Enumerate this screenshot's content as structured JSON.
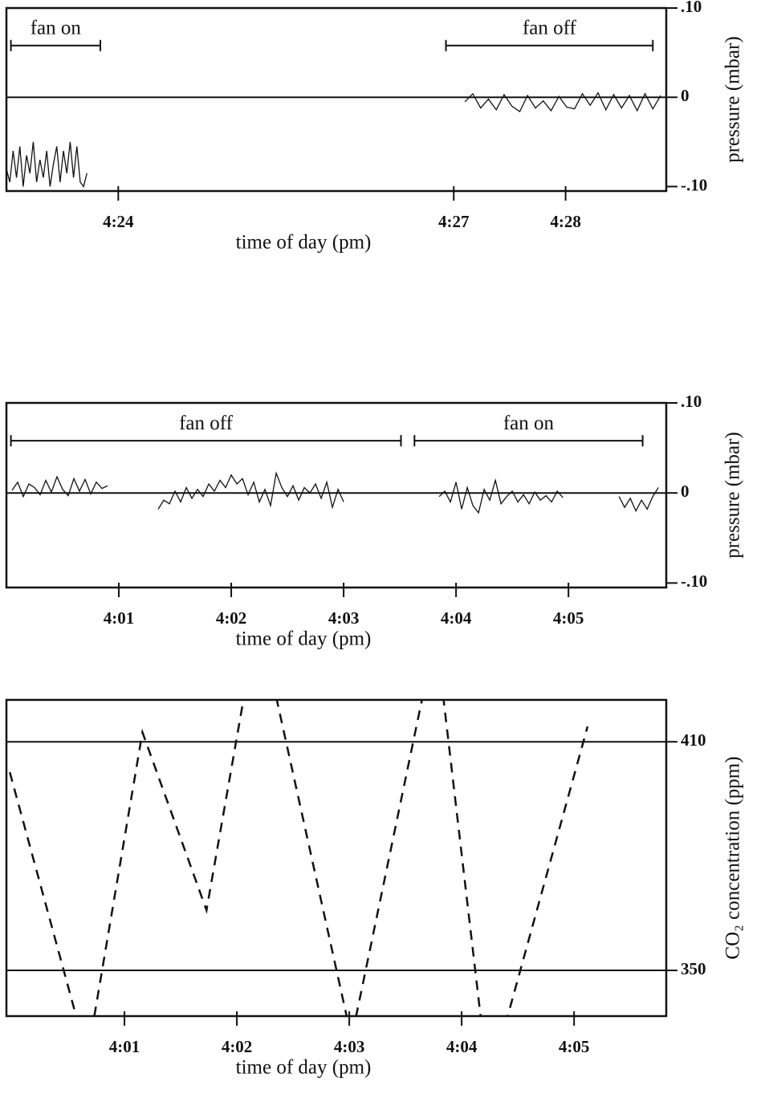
{
  "chart_data": [
    {
      "type": "line",
      "x_label": "time of day (pm)",
      "y_label": "pressure (mbar)",
      "yaxis_side": "right",
      "xlim": [
        23,
        28.9
      ],
      "xticks": [
        {
          "value": 24,
          "label": "4:24"
        },
        {
          "value": 27,
          "label": "4:27"
        },
        {
          "value": 28,
          "label": "4:28"
        }
      ],
      "ylim": [
        -0.105,
        0.1
      ],
      "yticks": [
        {
          "value": 0.1,
          "label": ".10"
        },
        0,
        {
          "value": -0.1,
          "label": "-.10"
        }
      ],
      "hlines": [
        0
      ],
      "line_style": "solid",
      "annotations": [
        {
          "text": "fan on",
          "x": [
            23.04,
            23.84
          ],
          "y": 0.058
        },
        {
          "text": "fan off",
          "x": [
            26.93,
            28.78
          ],
          "y": 0.058
        }
      ],
      "series": [
        {
          "color": "#111111",
          "x": [
            23.0,
            23.03,
            23.06,
            23.09,
            23.12,
            23.15,
            23.18,
            23.21,
            23.24,
            23.27,
            23.3,
            23.33,
            23.36,
            23.39,
            23.42,
            23.45,
            23.48,
            23.51,
            23.54,
            23.57,
            23.6,
            23.63,
            23.66,
            23.69,
            23.72
          ],
          "values": [
            -0.08,
            -0.095,
            -0.06,
            -0.09,
            -0.055,
            -0.1,
            -0.065,
            -0.085,
            -0.05,
            -0.095,
            -0.07,
            -0.09,
            -0.06,
            -0.1,
            -0.075,
            -0.055,
            -0.095,
            -0.06,
            -0.085,
            -0.05,
            -0.09,
            -0.055,
            -0.095,
            -0.1,
            -0.085
          ]
        },
        {
          "color": "#111111",
          "x": [
            27.1,
            27.17,
            27.24,
            27.31,
            27.38,
            27.45,
            27.52,
            27.59,
            27.66,
            27.73,
            27.8,
            27.87,
            27.94,
            28.01,
            28.08,
            28.15,
            28.22,
            28.29,
            28.36,
            28.43,
            28.5,
            28.57,
            28.64,
            28.71,
            28.78,
            28.85
          ],
          "values": [
            -0.005,
            0.004,
            -0.012,
            -0.002,
            -0.014,
            0.003,
            -0.01,
            -0.016,
            0.002,
            -0.012,
            -0.004,
            -0.015,
            0.001,
            -0.011,
            -0.013,
            0.004,
            -0.009,
            0.005,
            -0.014,
            0.003,
            -0.012,
            0.002,
            -0.015,
            0.004,
            -0.013,
            0.002
          ]
        }
      ]
    },
    {
      "type": "line",
      "x_label": "time of day (pm)",
      "y_label": "pressure (mbar)",
      "yaxis_side": "right",
      "xlim": [
        0,
        5.87
      ],
      "xticks": [
        {
          "value": 1,
          "label": "4:01"
        },
        {
          "value": 2,
          "label": "4:02"
        },
        {
          "value": 3,
          "label": "4:03"
        },
        {
          "value": 4,
          "label": "4:04"
        },
        {
          "value": 5,
          "label": "4:05"
        }
      ],
      "ylim": [
        -0.105,
        0.1
      ],
      "yticks": [
        {
          "value": 0.1,
          "label": ".10"
        },
        0,
        {
          "value": -0.1,
          "label": "-.10"
        }
      ],
      "hlines": [
        0
      ],
      "line_style": "solid",
      "annotations": [
        {
          "text": "fan off",
          "x": [
            0.04,
            3.51
          ],
          "y": 0.058
        },
        {
          "text": "fan on",
          "x": [
            3.63,
            5.66
          ],
          "y": 0.058
        }
      ],
      "series": [
        {
          "color": "#111111",
          "x": [
            0.05,
            0.1,
            0.15,
            0.2,
            0.25,
            0.3,
            0.35,
            0.4,
            0.45,
            0.5,
            0.55,
            0.6,
            0.65,
            0.7,
            0.75,
            0.8,
            0.85,
            0.9,
            1.1,
            1.35,
            1.4,
            1.45,
            1.5,
            1.55,
            1.6,
            1.65,
            1.7,
            1.75,
            1.8,
            1.85,
            1.9,
            1.95,
            2.0,
            2.05,
            2.1,
            2.15,
            2.2,
            2.25,
            2.3,
            2.35,
            2.4,
            2.45,
            2.5,
            2.55,
            2.6,
            2.65,
            2.7,
            2.75,
            2.8,
            2.85,
            2.9,
            2.95,
            3.0,
            3.4,
            3.85,
            3.9,
            3.95,
            4.0,
            4.05,
            4.1,
            4.15,
            4.2,
            4.25,
            4.3,
            4.35,
            4.4,
            4.45,
            4.5,
            4.55,
            4.6,
            4.65,
            4.7,
            4.75,
            4.8,
            4.85,
            4.9,
            4.95,
            5.2,
            5.45,
            5.5,
            5.55,
            5.6,
            5.65,
            5.7,
            5.75,
            5.8
          ],
          "values": [
            0.003,
            0.012,
            -0.004,
            0.01,
            0.006,
            -0.002,
            0.014,
            0.001,
            0.018,
            0.004,
            -0.003,
            0.016,
            0.002,
            0.015,
            -0.001,
            0.012,
            0.005,
            0.008,
            null,
            -0.018,
            -0.008,
            -0.012,
            0.002,
            -0.01,
            0.006,
            -0.006,
            0.004,
            -0.004,
            0.01,
            0.002,
            0.014,
            0.006,
            0.02,
            0.01,
            0.016,
            -0.002,
            0.012,
            -0.01,
            0.004,
            -0.014,
            0.022,
            0.006,
            -0.004,
            0.008,
            -0.008,
            0.006,
            0,
            0.01,
            -0.006,
            0.012,
            -0.016,
            0.004,
            -0.01,
            null,
            -0.004,
            0.002,
            -0.01,
            0.012,
            -0.018,
            0.006,
            -0.014,
            -0.022,
            0.004,
            -0.008,
            0.014,
            -0.012,
            -0.004,
            0.002,
            -0.01,
            -0.002,
            -0.012,
            0.001,
            -0.008,
            -0.003,
            -0.01,
            0.002,
            -0.005,
            null,
            -0.004,
            -0.016,
            -0.006,
            -0.02,
            -0.008,
            -0.018,
            -0.004,
            0.006
          ]
        }
      ]
    },
    {
      "type": "line",
      "x_label": "time of day (pm)",
      "y_label": "CO₂ concentration (ppm)",
      "yaxis_side": "right",
      "xlim": [
        -0.05,
        5.82
      ],
      "xticks": [
        {
          "value": 1,
          "label": "4:01"
        },
        {
          "value": 2,
          "label": "4:02"
        },
        {
          "value": 3,
          "label": "4:03"
        },
        {
          "value": 4,
          "label": "4:04"
        },
        {
          "value": 5,
          "label": "4:05"
        }
      ],
      "ylim": [
        338,
        421
      ],
      "yticks": [
        410,
        350
      ],
      "hlines": [
        410,
        350
      ],
      "line_style": "dashed",
      "series": [
        {
          "color": "#111111",
          "x": [
            -0.02,
            0.67,
            1.16,
            1.73,
            2.19,
            3.02,
            3.77,
            4.24,
            5.12
          ],
          "values": [
            402,
            327.2,
            412.5,
            365.8,
            443.1,
            332.2,
            438.5,
            319.9,
            414
          ]
        }
      ]
    }
  ]
}
